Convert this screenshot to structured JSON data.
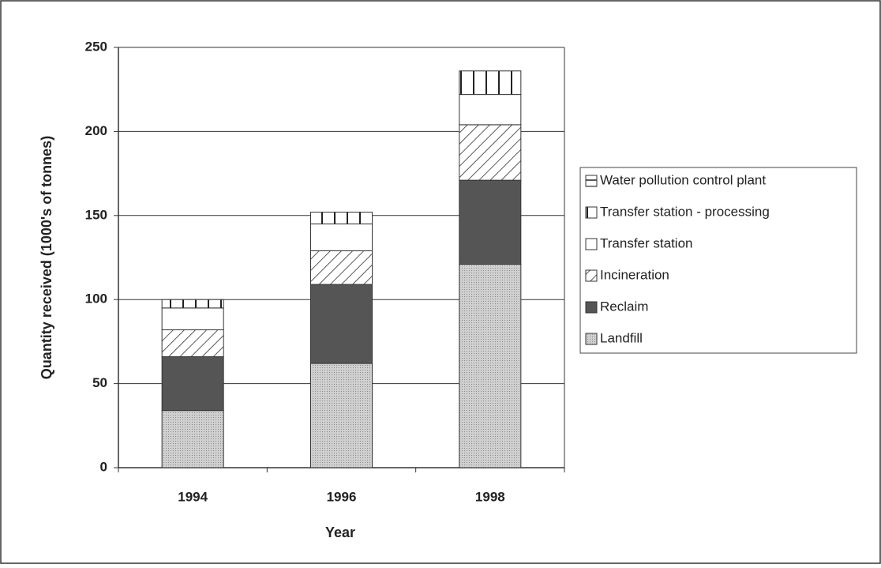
{
  "chart_data": {
    "type": "stacked_bar",
    "categories": [
      "1994",
      "1996",
      "1998"
    ],
    "series": [
      {
        "name": "Landfill",
        "color": "#c4c4c4",
        "pattern": "dots",
        "values": [
          34,
          62,
          121
        ]
      },
      {
        "name": "Reclaim",
        "color": "#555555",
        "pattern": "solid",
        "values": [
          32,
          47,
          50
        ]
      },
      {
        "name": "Incineration",
        "color": "#ffffff",
        "pattern": "diagonal",
        "values": [
          16,
          20,
          33
        ]
      },
      {
        "name": "Transfer station",
        "color": "#ffffff",
        "pattern": "none",
        "values": [
          13,
          16,
          18
        ]
      },
      {
        "name": "Transfer station - processing",
        "color": "#ffffff",
        "pattern": "vertical",
        "values": [
          5,
          7,
          14
        ]
      },
      {
        "name": "Water pollution control plant",
        "color": "#ffffff",
        "pattern": "horizontal",
        "values": [
          0,
          0,
          0
        ]
      }
    ],
    "xlabel": "Year",
    "ylabel": "Quantity received (1000's of tonnes)",
    "ylim": [
      0,
      250
    ],
    "yticks": [
      0,
      50,
      100,
      150,
      200,
      250
    ],
    "grid": true,
    "legend": "right"
  }
}
